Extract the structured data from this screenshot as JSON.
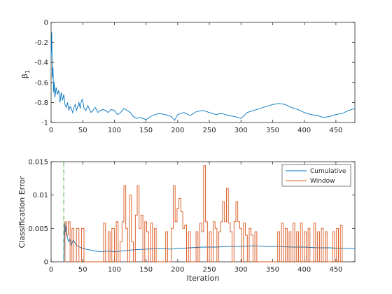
{
  "figure_bg": "#ffffff",
  "chart_data": [
    {
      "type": "line",
      "ylabel": "β",
      "ylabel_sub": "1",
      "xlim": [
        0,
        480
      ],
      "ylim": [
        -1,
        0
      ],
      "xticks": [
        0,
        50,
        100,
        150,
        200,
        250,
        300,
        350,
        400,
        450
      ],
      "yticks": [
        -1,
        -0.8,
        -0.6,
        -0.4,
        -0.2,
        0
      ],
      "ytick_labels": [
        "-1",
        "-0.8",
        "-0.6",
        "-0.4",
        "-0.2",
        "0"
      ],
      "series": [
        {
          "color": "#0072bd",
          "x": [
            0,
            1,
            2,
            3,
            4,
            5,
            6,
            8,
            10,
            12,
            14,
            16,
            18,
            20,
            22,
            24,
            26,
            28,
            30,
            32,
            34,
            36,
            38,
            40,
            42,
            44,
            46,
            48,
            50,
            52,
            55,
            58,
            60,
            63,
            66,
            70,
            74,
            78,
            82,
            86,
            90,
            95,
            100,
            105,
            110,
            115,
            120,
            125,
            130,
            135,
            140,
            145,
            150,
            160,
            170,
            180,
            190,
            195,
            200,
            210,
            220,
            230,
            240,
            250,
            260,
            270,
            280,
            290,
            300,
            310,
            320,
            330,
            340,
            350,
            360,
            370,
            380,
            390,
            400,
            410,
            420,
            430,
            440,
            450,
            460,
            470,
            480
          ],
          "values": [
            -0.35,
            -0.1,
            -0.55,
            -0.45,
            -0.7,
            -0.6,
            -0.75,
            -0.65,
            -0.72,
            -0.68,
            -0.8,
            -0.7,
            -0.78,
            -0.72,
            -0.82,
            -0.85,
            -0.8,
            -0.88,
            -0.84,
            -0.86,
            -0.9,
            -0.85,
            -0.82,
            -0.88,
            -0.84,
            -0.8,
            -0.86,
            -0.78,
            -0.77,
            -0.86,
            -0.88,
            -0.83,
            -0.86,
            -0.9,
            -0.88,
            -0.85,
            -0.9,
            -0.88,
            -0.87,
            -0.88,
            -0.9,
            -0.87,
            -0.88,
            -0.92,
            -0.9,
            -0.86,
            -0.88,
            -0.9,
            -0.94,
            -0.96,
            -0.95,
            -0.96,
            -0.97,
            -0.93,
            -0.91,
            -0.92,
            -0.94,
            -0.98,
            -0.92,
            -0.9,
            -0.93,
            -0.89,
            -0.88,
            -0.9,
            -0.92,
            -0.91,
            -0.93,
            -0.94,
            -0.96,
            -0.9,
            -0.88,
            -0.86,
            -0.84,
            -0.82,
            -0.81,
            -0.82,
            -0.85,
            -0.87,
            -0.9,
            -0.92,
            -0.93,
            -0.95,
            -0.94,
            -0.92,
            -0.91,
            -0.88,
            -0.86
          ]
        }
      ]
    },
    {
      "type": "line",
      "xlabel": "Iteration",
      "ylabel": "Classification Error",
      "xlim": [
        0,
        480
      ],
      "ylim": [
        0,
        0.015
      ],
      "xticks": [
        0,
        50,
        100,
        150,
        200,
        250,
        300,
        350,
        400,
        450
      ],
      "yticks": [
        0,
        0.005,
        0.01,
        0.015
      ],
      "ytick_labels": [
        "0",
        "0.005",
        "0.01",
        "0.015"
      ],
      "legend": "top-right",
      "vline": {
        "x": 20,
        "color": "#2ca02c"
      },
      "series": [
        {
          "name": "Cumulative",
          "color": "#0072bd",
          "x": [
            20,
            21,
            22,
            23,
            24,
            25,
            26,
            28,
            30,
            32,
            35,
            38,
            40,
            45,
            50,
            55,
            60,
            70,
            80,
            90,
            100,
            110,
            120,
            130,
            150,
            170,
            190,
            200,
            220,
            240,
            260,
            280,
            300,
            320,
            340,
            360,
            380,
            400,
            420,
            440,
            460,
            480
          ],
          "values": [
            0.0,
            0.005,
            0.006,
            0.0045,
            0.0055,
            0.004,
            0.0035,
            0.003,
            0.0035,
            0.0025,
            0.0032,
            0.0028,
            0.0025,
            0.0022,
            0.002,
            0.0019,
            0.0018,
            0.0016,
            0.0015,
            0.0016,
            0.0015,
            0.0016,
            0.0017,
            0.0018,
            0.0019,
            0.002,
            0.0019,
            0.002,
            0.0021,
            0.0022,
            0.0022,
            0.0023,
            0.0023,
            0.0024,
            0.0023,
            0.0023,
            0.0022,
            0.0022,
            0.0021,
            0.0021,
            0.002,
            0.002
          ]
        },
        {
          "name": "Window",
          "color": "#d95319",
          "x": [
            20,
            22,
            24,
            27,
            30,
            33,
            36,
            40,
            44,
            48,
            52,
            80,
            83,
            86,
            90,
            93,
            96,
            100,
            103,
            106,
            109,
            112,
            115,
            118,
            121,
            124,
            127,
            130,
            133,
            136,
            139,
            142,
            145,
            148,
            151,
            154,
            157,
            160,
            163,
            166,
            178,
            181,
            184,
            190,
            193,
            196,
            199,
            202,
            205,
            208,
            211,
            214,
            217,
            220,
            226,
            229,
            232,
            235,
            238,
            241,
            244,
            247,
            250,
            253,
            256,
            259,
            262,
            265,
            268,
            271,
            274,
            277,
            280,
            283,
            286,
            289,
            292,
            295,
            298,
            301,
            304,
            307,
            310,
            313,
            316,
            319,
            322,
            325,
            328,
            355,
            358,
            361,
            364,
            367,
            370,
            373,
            376,
            379,
            382,
            385,
            388,
            391,
            394,
            397,
            400,
            403,
            406,
            409,
            415,
            418,
            421,
            424,
            427,
            430,
            433,
            436,
            445,
            448,
            451,
            454,
            457,
            460
          ],
          "values": [
            0,
            0.006,
            0.004,
            0.006,
            0,
            0.005,
            0,
            0.005,
            0,
            0.005,
            0,
            0,
            0.0058,
            0,
            0.0045,
            0,
            0.005,
            0,
            0.006,
            0,
            0.003,
            0.006,
            0.0114,
            0.005,
            0,
            0.01,
            0.003,
            0,
            0.007,
            0.0114,
            0.005,
            0.007,
            0,
            0.006,
            0.0045,
            0,
            0.0058,
            0,
            0.005,
            0,
            0,
            0.0045,
            0,
            0.005,
            0.0114,
            0.006,
            0.008,
            0.0095,
            0.0075,
            0.005,
            0.0055,
            0,
            0.0045,
            0,
            0,
            0.0045,
            0,
            0.0058,
            0.0045,
            0.0144,
            0.006,
            0,
            0.0045,
            0,
            0.006,
            0.005,
            0,
            0.0045,
            0.006,
            0.009,
            0.006,
            0.011,
            0.0058,
            0.0045,
            0,
            0.006,
            0.009,
            0.006,
            0.005,
            0,
            0.0058,
            0.004,
            0,
            0.005,
            0.004,
            0,
            0.0045,
            0,
            0,
            0,
            0.0045,
            0,
            0.0058,
            0,
            0.005,
            0,
            0.0045,
            0,
            0.0058,
            0,
            0.0045,
            0,
            0.0058,
            0,
            0.0045,
            0,
            0.005,
            0,
            0.0058,
            0,
            0.0045,
            0,
            0.005,
            0,
            0.0045,
            0,
            0.0045,
            0,
            0.005,
            0,
            0.0055,
            0
          ]
        }
      ]
    }
  ]
}
